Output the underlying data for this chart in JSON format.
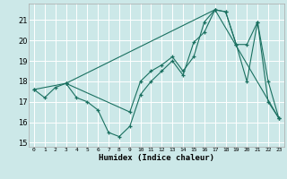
{
  "xlabel": "Humidex (Indice chaleur)",
  "bg_color": "#cce8e8",
  "line_color": "#1a7060",
  "grid_color": "#ffffff",
  "xlim": [
    -0.5,
    23.5
  ],
  "ylim": [
    14.8,
    21.8
  ],
  "xticks": [
    0,
    1,
    2,
    3,
    4,
    5,
    6,
    7,
    8,
    9,
    10,
    11,
    12,
    13,
    14,
    15,
    16,
    17,
    18,
    19,
    20,
    21,
    22,
    23
  ],
  "yticks": [
    15,
    16,
    17,
    18,
    19,
    20,
    21
  ],
  "lines": [
    {
      "x": [
        0,
        1,
        2,
        3,
        4,
        5,
        6,
        7,
        8,
        9,
        10,
        11,
        12,
        13,
        14,
        15,
        16,
        17,
        18,
        19,
        20,
        21,
        22,
        23
      ],
      "y": [
        17.6,
        17.2,
        17.7,
        17.9,
        17.2,
        17.0,
        16.6,
        15.5,
        15.3,
        15.8,
        17.35,
        18.0,
        18.5,
        19.0,
        18.3,
        19.9,
        20.4,
        21.5,
        21.4,
        19.8,
        18.0,
        20.9,
        17.0,
        16.2
      ]
    },
    {
      "x": [
        3,
        9,
        10,
        11,
        12,
        13,
        14,
        15,
        16,
        17,
        18,
        19,
        20,
        21,
        22,
        23
      ],
      "y": [
        17.9,
        16.5,
        18.0,
        18.5,
        18.8,
        19.2,
        18.5,
        19.2,
        20.9,
        21.5,
        21.4,
        19.8,
        19.8,
        20.9,
        18.0,
        16.2
      ]
    },
    {
      "x": [
        0,
        3,
        17,
        23
      ],
      "y": [
        17.6,
        17.9,
        21.5,
        16.2
      ]
    }
  ]
}
